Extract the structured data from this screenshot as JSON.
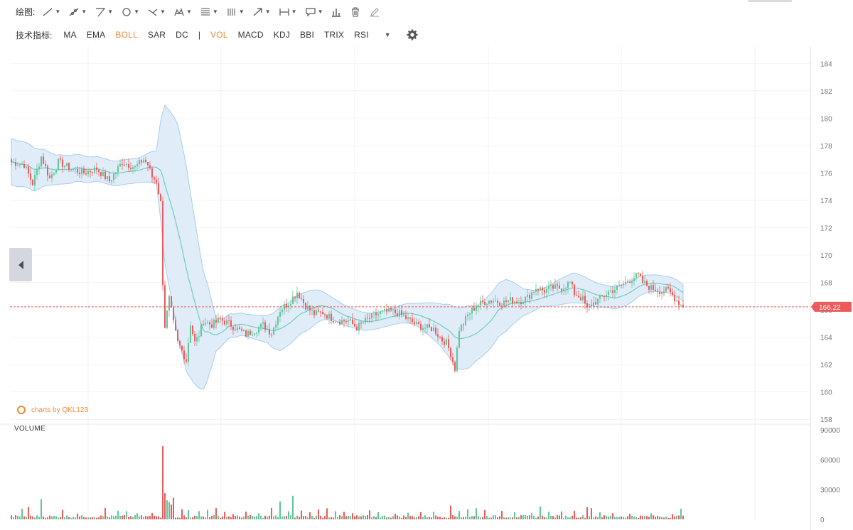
{
  "toolbar": {
    "draw_label": "绘图:",
    "tools": [
      {
        "icon": "line-tool-icon"
      },
      {
        "icon": "ray-tool-icon"
      },
      {
        "icon": "triangle-tool-icon"
      },
      {
        "icon": "circle-tool-icon"
      },
      {
        "icon": "cross-line-tool-icon"
      },
      {
        "icon": "pattern-tool-icon"
      },
      {
        "icon": "fibonacci-tool-icon"
      },
      {
        "icon": "gann-tool-icon"
      },
      {
        "icon": "arrow-tool-icon"
      },
      {
        "icon": "measure-tool-icon"
      },
      {
        "icon": "comment-tool-icon"
      }
    ],
    "single_tools": [
      "bar-chart-icon",
      "trash-icon",
      "pen-lock-icon"
    ]
  },
  "indicators": {
    "label": "技术指标:",
    "items": [
      {
        "label": "MA",
        "active": false
      },
      {
        "label": "EMA",
        "active": false
      },
      {
        "label": "BOLL",
        "active": true
      },
      {
        "label": "SAR",
        "active": false
      },
      {
        "label": "DC",
        "active": false
      }
    ],
    "separator": "|",
    "sub_items": [
      {
        "label": "VOL",
        "active": true
      },
      {
        "label": "MACD",
        "active": false
      },
      {
        "label": "KDJ",
        "active": false
      },
      {
        "label": "BBI",
        "active": false
      },
      {
        "label": "TRIX",
        "active": false
      },
      {
        "label": "RSI",
        "active": false
      }
    ]
  },
  "watermark": "charts by QKL123",
  "volume_label": "VOLUME",
  "colors": {
    "up": "#5fc49a",
    "down": "#ec5a5a",
    "boll_fill": "#dbeaf8",
    "boll_band": "#a8cdee",
    "boll_mid": "#6fcdc0",
    "accent": "#f0883a",
    "price_tag": "#ec5a5a"
  },
  "chart_data": [
    {
      "type": "candlestick",
      "y_ticks": [
        184,
        182,
        180,
        178,
        176,
        174,
        172,
        170,
        168,
        166,
        164,
        162,
        160,
        158
      ],
      "ylim": [
        157.7,
        185
      ],
      "current_price": "166.22",
      "current_value": 166.22,
      "price_anchors": [
        [
          0,
          176.8
        ],
        [
          6,
          176.6
        ],
        [
          10,
          175.2
        ],
        [
          14,
          177.2
        ],
        [
          18,
          175.6
        ],
        [
          22,
          176.8
        ],
        [
          28,
          176.3
        ],
        [
          34,
          176.0
        ],
        [
          40,
          176.3
        ],
        [
          46,
          175.4
        ],
        [
          52,
          176.8
        ],
        [
          58,
          176.4
        ],
        [
          62,
          177.0
        ],
        [
          64,
          176.6
        ],
        [
          66,
          175.7
        ],
        [
          68,
          175.4
        ],
        [
          70,
          173.8
        ],
        [
          71,
          168.0
        ],
        [
          72,
          164.8
        ],
        [
          74,
          166.8
        ],
        [
          76,
          165.0
        ],
        [
          78,
          163.6
        ],
        [
          80,
          163.0
        ],
        [
          82,
          162.3
        ],
        [
          84,
          165.0
        ],
        [
          86,
          163.6
        ],
        [
          88,
          164.2
        ],
        [
          90,
          165.2
        ],
        [
          94,
          164.9
        ],
        [
          98,
          165.3
        ],
        [
          102,
          165.0
        ],
        [
          106,
          164.6
        ],
        [
          110,
          164.2
        ],
        [
          114,
          164.5
        ],
        [
          118,
          164.9
        ],
        [
          122,
          164.3
        ],
        [
          126,
          166.0
        ],
        [
          130,
          166.5
        ],
        [
          134,
          167.3
        ],
        [
          138,
          166.3
        ],
        [
          142,
          165.7
        ],
        [
          146,
          165.8
        ],
        [
          150,
          165.4
        ],
        [
          154,
          165.2
        ],
        [
          158,
          165.2
        ],
        [
          162,
          164.7
        ],
        [
          166,
          165.2
        ],
        [
          170,
          165.6
        ],
        [
          174,
          165.8
        ],
        [
          178,
          165.9
        ],
        [
          182,
          165.7
        ],
        [
          186,
          165.3
        ],
        [
          190,
          164.9
        ],
        [
          194,
          164.7
        ],
        [
          198,
          164.6
        ],
        [
          202,
          163.8
        ],
        [
          204,
          163.6
        ],
        [
          206,
          162.8
        ],
        [
          208,
          161.7
        ],
        [
          210,
          164.6
        ],
        [
          212,
          165.0
        ],
        [
          214,
          165.6
        ],
        [
          218,
          166.3
        ],
        [
          222,
          166.6
        ],
        [
          226,
          166.7
        ],
        [
          230,
          166.5
        ],
        [
          234,
          166.7
        ],
        [
          238,
          166.6
        ],
        [
          242,
          166.9
        ],
        [
          246,
          167.6
        ],
        [
          250,
          167.4
        ],
        [
          254,
          167.6
        ],
        [
          258,
          167.6
        ],
        [
          262,
          168.0
        ],
        [
          264,
          167.2
        ],
        [
          268,
          166.8
        ],
        [
          270,
          166.0
        ],
        [
          272,
          166.4
        ],
        [
          276,
          166.8
        ],
        [
          280,
          167.3
        ],
        [
          284,
          167.6
        ],
        [
          288,
          168.0
        ],
        [
          292,
          168.4
        ],
        [
          294,
          168.5
        ],
        [
          296,
          168.0
        ],
        [
          300,
          167.6
        ],
        [
          304,
          167.4
        ],
        [
          308,
          167.4
        ],
        [
          312,
          166.7
        ],
        [
          315,
          166.22
        ]
      ],
      "boll_width_anchors": [
        [
          0,
          1.7
        ],
        [
          10,
          1.6
        ],
        [
          20,
          1.1
        ],
        [
          40,
          0.9
        ],
        [
          60,
          0.9
        ],
        [
          68,
          1.2
        ],
        [
          70,
          3.6
        ],
        [
          72,
          5.8
        ],
        [
          78,
          7.7
        ],
        [
          82,
          7.5
        ],
        [
          86,
          6.0
        ],
        [
          92,
          3.5
        ],
        [
          96,
          1.2
        ],
        [
          100,
          0.9
        ],
        [
          110,
          0.8
        ],
        [
          120,
          1.0
        ],
        [
          126,
          1.6
        ],
        [
          134,
          1.5
        ],
        [
          140,
          1.4
        ],
        [
          150,
          0.8
        ],
        [
          160,
          0.7
        ],
        [
          170,
          0.6
        ],
        [
          180,
          0.6
        ],
        [
          190,
          0.8
        ],
        [
          196,
          1.2
        ],
        [
          202,
          1.6
        ],
        [
          208,
          2.2
        ],
        [
          214,
          2.3
        ],
        [
          218,
          2.0
        ],
        [
          224,
          2.0
        ],
        [
          232,
          1.9
        ],
        [
          240,
          1.0
        ],
        [
          248,
          0.6
        ],
        [
          256,
          0.9
        ],
        [
          264,
          1.1
        ],
        [
          272,
          0.9
        ],
        [
          280,
          0.8
        ],
        [
          290,
          0.8
        ],
        [
          300,
          0.6
        ],
        [
          310,
          0.6
        ],
        [
          315,
          0.6
        ]
      ]
    },
    {
      "type": "bar",
      "title": "VOLUME",
      "y_ticks": [
        90000,
        60000,
        30000,
        0
      ],
      "ylim": [
        0,
        90000
      ],
      "bar_count": 316,
      "spikes": [
        [
          5,
          10500
        ],
        [
          8,
          12300
        ],
        [
          14,
          20500
        ],
        [
          24,
          9500
        ],
        [
          31,
          5800
        ],
        [
          44,
          11300
        ],
        [
          50,
          8700
        ],
        [
          54,
          8200
        ],
        [
          59,
          6100
        ],
        [
          66,
          6300
        ],
        [
          71,
          73600
        ],
        [
          72,
          26300
        ],
        [
          73,
          19200
        ],
        [
          74,
          17400
        ],
        [
          75,
          14800
        ],
        [
          76,
          21800
        ],
        [
          80,
          10200
        ],
        [
          83,
          9200
        ],
        [
          88,
          8300
        ],
        [
          92,
          9400
        ],
        [
          96,
          11300
        ],
        [
          100,
          7500
        ],
        [
          104,
          5200
        ],
        [
          110,
          7700
        ],
        [
          116,
          6100
        ],
        [
          122,
          11400
        ],
        [
          126,
          18000
        ],
        [
          130,
          8200
        ],
        [
          132,
          23700
        ],
        [
          136,
          8900
        ],
        [
          140,
          7100
        ],
        [
          144,
          9800
        ],
        [
          148,
          11100
        ],
        [
          152,
          8100
        ],
        [
          156,
          7600
        ],
        [
          160,
          6200
        ],
        [
          168,
          9100
        ],
        [
          172,
          7200
        ],
        [
          180,
          5600
        ],
        [
          186,
          6700
        ],
        [
          192,
          7300
        ],
        [
          198,
          7600
        ],
        [
          206,
          13900
        ],
        [
          210,
          8400
        ],
        [
          214,
          10100
        ],
        [
          218,
          11200
        ],
        [
          222,
          9300
        ],
        [
          230,
          8500
        ],
        [
          236,
          7200
        ],
        [
          244,
          6100
        ],
        [
          248,
          12900
        ],
        [
          252,
          7600
        ],
        [
          258,
          7900
        ],
        [
          264,
          8700
        ],
        [
          270,
          12200
        ],
        [
          272,
          11300
        ],
        [
          276,
          7100
        ],
        [
          282,
          6200
        ],
        [
          290,
          5600
        ],
        [
          300,
          6100
        ],
        [
          310,
          5300
        ],
        [
          314,
          10600
        ]
      ]
    }
  ]
}
